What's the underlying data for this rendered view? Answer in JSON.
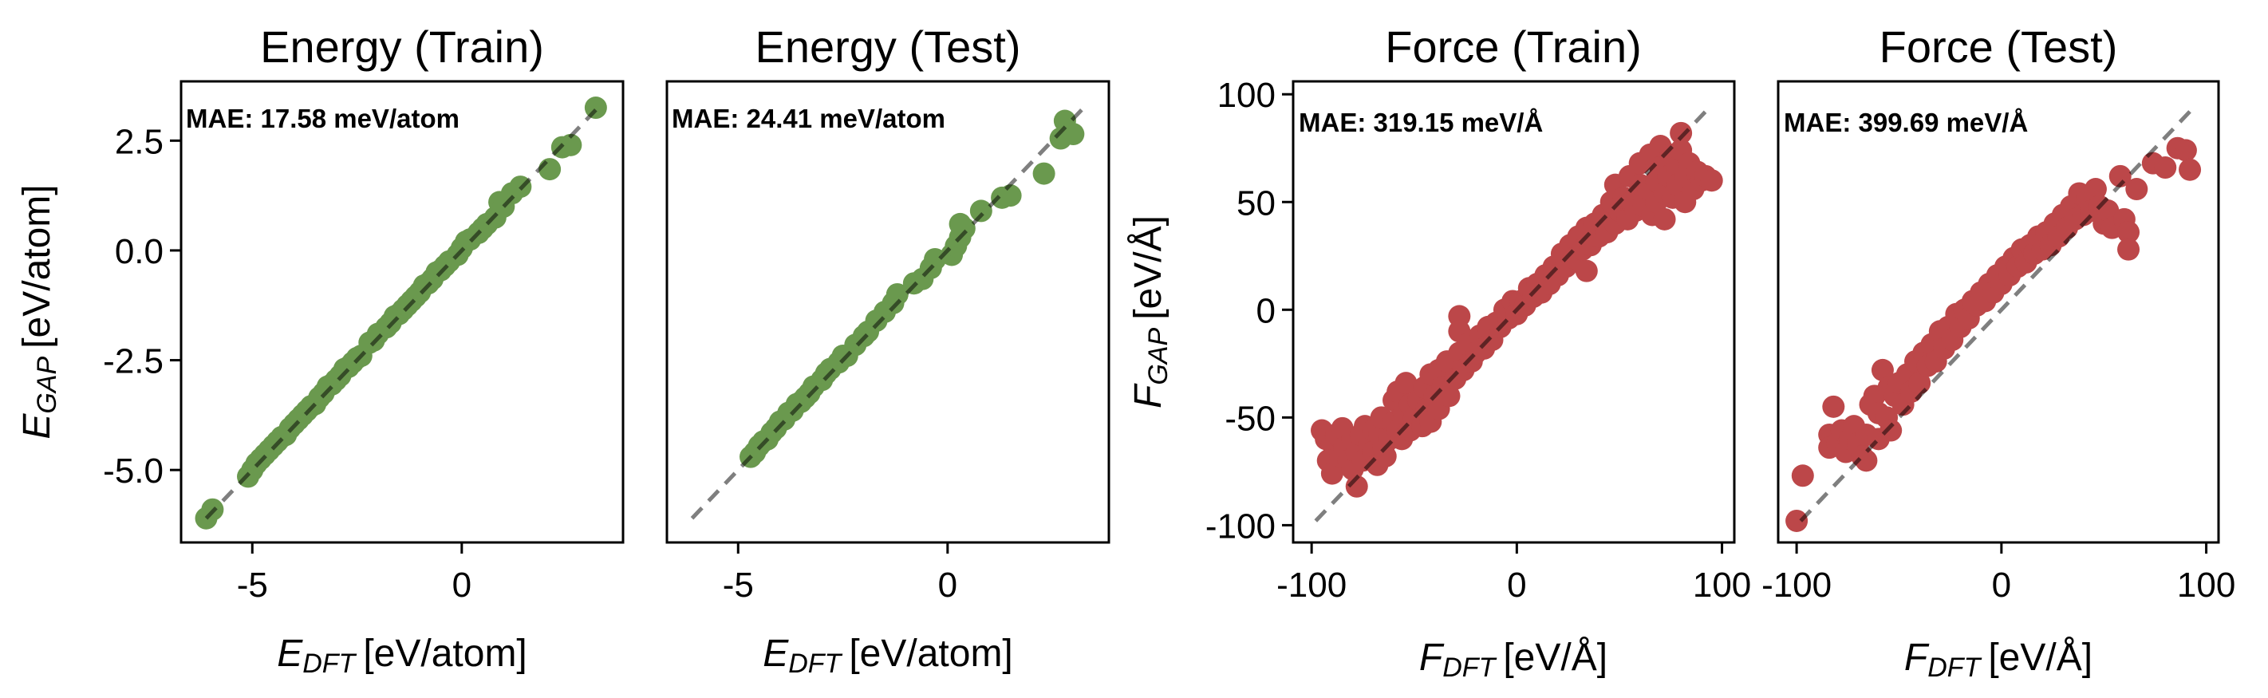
{
  "chart_data": [
    {
      "type": "scatter",
      "title": "Energy (Train)",
      "annotation": "MAE: 17.58 meV/atom",
      "xlabel": {
        "symbol": "E",
        "subscript": "DFT",
        "unit": "[eV/atom]"
      },
      "ylabel": {
        "symbol": "E",
        "subscript": "GAP",
        "unit": "[eV/atom]"
      },
      "xlim": [
        -6.7,
        3.85
      ],
      "ylim": [
        -6.65,
        3.85
      ],
      "xticks": [
        {
          "value": -5,
          "label": "-5"
        },
        {
          "value": 0,
          "label": "0"
        }
      ],
      "yticks": [
        {
          "value": 2.5,
          "label": "2.5"
        },
        {
          "value": 0,
          "label": "0.0"
        },
        {
          "value": -2.5,
          "label": "-2.5"
        },
        {
          "value": -5,
          "label": "-5.0"
        }
      ],
      "grid": false,
      "color": "#6a994e",
      "reference_line": [
        -6.1,
        3.2
      ],
      "points": [
        [
          -6.1,
          -6.1
        ],
        [
          -5.95,
          -5.9
        ],
        [
          -5.1,
          -5.15
        ],
        [
          -5.0,
          -5.0
        ],
        [
          -4.9,
          -4.85
        ],
        [
          -4.8,
          -4.75
        ],
        [
          -4.7,
          -4.65
        ],
        [
          -4.6,
          -4.55
        ],
        [
          -4.5,
          -4.45
        ],
        [
          -4.4,
          -4.35
        ],
        [
          -4.3,
          -4.25
        ],
        [
          -4.2,
          -4.2
        ],
        [
          -4.1,
          -4.05
        ],
        [
          -4.0,
          -3.95
        ],
        [
          -3.9,
          -3.85
        ],
        [
          -3.8,
          -3.75
        ],
        [
          -3.7,
          -3.65
        ],
        [
          -3.6,
          -3.55
        ],
        [
          -3.5,
          -3.5
        ],
        [
          -3.4,
          -3.35
        ],
        [
          -3.3,
          -3.25
        ],
        [
          -3.2,
          -3.1
        ],
        [
          -3.1,
          -3.05
        ],
        [
          -3.0,
          -2.95
        ],
        [
          -2.9,
          -2.85
        ],
        [
          -2.8,
          -2.7
        ],
        [
          -2.7,
          -2.65
        ],
        [
          -2.6,
          -2.55
        ],
        [
          -2.5,
          -2.45
        ],
        [
          -2.4,
          -2.4
        ],
        [
          -2.2,
          -2.1
        ],
        [
          -2.1,
          -2.05
        ],
        [
          -2.0,
          -1.9
        ],
        [
          -1.8,
          -1.75
        ],
        [
          -1.7,
          -1.65
        ],
        [
          -1.6,
          -1.5
        ],
        [
          -1.5,
          -1.45
        ],
        [
          -1.4,
          -1.35
        ],
        [
          -1.3,
          -1.25
        ],
        [
          -1.2,
          -1.15
        ],
        [
          -1.1,
          -1.05
        ],
        [
          -1.0,
          -0.95
        ],
        [
          -0.9,
          -0.8
        ],
        [
          -0.8,
          -0.75
        ],
        [
          -0.7,
          -0.65
        ],
        [
          -0.6,
          -0.5
        ],
        [
          -0.5,
          -0.45
        ],
        [
          -0.4,
          -0.35
        ],
        [
          -0.3,
          -0.25
        ],
        [
          -0.1,
          -0.1
        ],
        [
          0.0,
          0.05
        ],
        [
          0.1,
          0.2
        ],
        [
          0.2,
          0.25
        ],
        [
          0.4,
          0.4
        ],
        [
          0.5,
          0.5
        ],
        [
          0.6,
          0.6
        ],
        [
          0.8,
          0.75
        ],
        [
          0.9,
          1.1
        ],
        [
          1.0,
          1.0
        ],
        [
          1.2,
          1.3
        ],
        [
          1.4,
          1.45
        ],
        [
          2.1,
          1.85
        ],
        [
          2.4,
          2.35
        ],
        [
          2.6,
          2.4
        ],
        [
          3.2,
          3.25
        ]
      ]
    },
    {
      "type": "scatter",
      "title": "Energy (Test)",
      "annotation": "MAE: 24.41 meV/atom",
      "xlabel": {
        "symbol": "E",
        "subscript": "DFT",
        "unit": "[eV/atom]"
      },
      "xlim": [
        -6.7,
        3.85
      ],
      "ylim": [
        -6.65,
        3.85
      ],
      "xticks": [
        {
          "value": -5,
          "label": "-5"
        },
        {
          "value": 0,
          "label": "0"
        }
      ],
      "yticks": [],
      "grid": false,
      "color": "#6a994e",
      "reference_line": [
        -6.1,
        3.2
      ],
      "points": [
        [
          -4.7,
          -4.7
        ],
        [
          -4.6,
          -4.6
        ],
        [
          -4.5,
          -4.45
        ],
        [
          -4.4,
          -4.35
        ],
        [
          -4.3,
          -4.3
        ],
        [
          -4.2,
          -4.15
        ],
        [
          -4.1,
          -4.05
        ],
        [
          -4.0,
          -3.9
        ],
        [
          -3.9,
          -3.85
        ],
        [
          -3.8,
          -3.7
        ],
        [
          -3.7,
          -3.65
        ],
        [
          -3.6,
          -3.5
        ],
        [
          -3.5,
          -3.45
        ],
        [
          -3.4,
          -3.35
        ],
        [
          -3.3,
          -3.25
        ],
        [
          -3.2,
          -3.1
        ],
        [
          -3.0,
          -2.95
        ],
        [
          -2.9,
          -2.8
        ],
        [
          -2.8,
          -2.7
        ],
        [
          -2.6,
          -2.55
        ],
        [
          -2.5,
          -2.4
        ],
        [
          -2.4,
          -2.4
        ],
        [
          -2.2,
          -2.15
        ],
        [
          -2.0,
          -1.95
        ],
        [
          -1.9,
          -1.85
        ],
        [
          -1.7,
          -1.6
        ],
        [
          -1.5,
          -1.4
        ],
        [
          -1.3,
          -1.2
        ],
        [
          -1.2,
          -1.0
        ],
        [
          -0.8,
          -0.75
        ],
        [
          -0.6,
          -0.65
        ],
        [
          -0.4,
          -0.4
        ],
        [
          -0.3,
          -0.2
        ],
        [
          0.1,
          -0.1
        ],
        [
          0.2,
          0.1
        ],
        [
          0.3,
          0.3
        ],
        [
          0.4,
          0.5
        ],
        [
          0.3,
          0.6
        ],
        [
          0.8,
          0.9
        ],
        [
          1.3,
          1.2
        ],
        [
          1.5,
          1.25
        ],
        [
          2.3,
          1.75
        ],
        [
          2.7,
          2.55
        ],
        [
          2.8,
          2.95
        ],
        [
          3.0,
          2.65
        ]
      ]
    },
    {
      "type": "scatter",
      "title": "Force (Train)",
      "annotation": "MAE: 319.15 meV/Å",
      "xlabel": {
        "symbol": "F",
        "subscript": "DFT",
        "unit": "[eV/Å]"
      },
      "ylabel": {
        "symbol": "F",
        "subscript": "GAP",
        "unit": "[eV/Å]"
      },
      "xlim": [
        -109,
        106
      ],
      "ylim": [
        -108,
        106
      ],
      "xticks": [
        {
          "value": -100,
          "label": "-100"
        },
        {
          "value": 0,
          "label": "0"
        },
        {
          "value": 100,
          "label": "100"
        }
      ],
      "yticks": [
        {
          "value": 100,
          "label": "100"
        },
        {
          "value": 50,
          "label": "50"
        },
        {
          "value": 0,
          "label": "0"
        },
        {
          "value": -50,
          "label": "-50"
        },
        {
          "value": -100,
          "label": "-100"
        }
      ],
      "grid": false,
      "color": "#bc4749",
      "reference_line": [
        -98,
        95
      ],
      "points": [
        [
          -95,
          -56
        ],
        [
          -93,
          -60
        ],
        [
          -90,
          -62
        ],
        [
          -88,
          -58
        ],
        [
          -92,
          -70
        ],
        [
          -90,
          -76
        ],
        [
          -86,
          -68
        ],
        [
          -85,
          -55
        ],
        [
          -84,
          -64
        ],
        [
          -82,
          -70
        ],
        [
          -80,
          -60
        ],
        [
          -80,
          -74
        ],
        [
          -78,
          -82
        ],
        [
          -78,
          -66
        ],
        [
          -76,
          -58
        ],
        [
          -75,
          -70
        ],
        [
          -74,
          -54
        ],
        [
          -72,
          -62
        ],
        [
          -70,
          -66
        ],
        [
          -70,
          -56
        ],
        [
          -68,
          -72
        ],
        [
          -67,
          -58
        ],
        [
          -66,
          -50
        ],
        [
          -65,
          -64
        ],
        [
          -64,
          -68
        ],
        [
          -62,
          -60
        ],
        [
          -60,
          -52
        ],
        [
          -60,
          -42
        ],
        [
          -58,
          -56
        ],
        [
          -58,
          -38
        ],
        [
          -56,
          -60
        ],
        [
          -55,
          -48
        ],
        [
          -54,
          -34
        ],
        [
          -52,
          -44
        ],
        [
          -52,
          -56
        ],
        [
          -50,
          -50
        ],
        [
          -48,
          -42
        ],
        [
          -46,
          -54
        ],
        [
          -45,
          -36
        ],
        [
          -44,
          -46
        ],
        [
          -42,
          -30
        ],
        [
          -42,
          -52
        ],
        [
          -40,
          -40
        ],
        [
          -38,
          -28
        ],
        [
          -38,
          -46
        ],
        [
          -36,
          -36
        ],
        [
          -34,
          -24
        ],
        [
          -33,
          -40
        ],
        [
          -30,
          -32
        ],
        [
          -28,
          -3
        ],
        [
          -28,
          -10
        ],
        [
          -28,
          -20
        ],
        [
          -26,
          -28
        ],
        [
          -24,
          -16
        ],
        [
          -22,
          -24
        ],
        [
          -20,
          -20
        ],
        [
          -18,
          -12
        ],
        [
          -16,
          -18
        ],
        [
          -14,
          -8
        ],
        [
          -12,
          -14
        ],
        [
          -10,
          -6
        ],
        [
          -8,
          -8
        ],
        [
          -6,
          0
        ],
        [
          -4,
          -4
        ],
        [
          -2,
          4
        ],
        [
          0,
          -2
        ],
        [
          2,
          4
        ],
        [
          4,
          2
        ],
        [
          6,
          10
        ],
        [
          8,
          6
        ],
        [
          10,
          12
        ],
        [
          12,
          8
        ],
        [
          14,
          16
        ],
        [
          16,
          12
        ],
        [
          18,
          20
        ],
        [
          20,
          16
        ],
        [
          22,
          26
        ],
        [
          24,
          20
        ],
        [
          26,
          30
        ],
        [
          28,
          24
        ],
        [
          30,
          34
        ],
        [
          32,
          28
        ],
        [
          34,
          38
        ],
        [
          34,
          18
        ],
        [
          36,
          30
        ],
        [
          38,
          40
        ],
        [
          40,
          34
        ],
        [
          42,
          44
        ],
        [
          44,
          36
        ],
        [
          46,
          50
        ],
        [
          48,
          40
        ],
        [
          48,
          58
        ],
        [
          50,
          46
        ],
        [
          52,
          52
        ],
        [
          54,
          42
        ],
        [
          55,
          62
        ],
        [
          56,
          50
        ],
        [
          58,
          46
        ],
        [
          60,
          58
        ],
        [
          60,
          68
        ],
        [
          62,
          48
        ],
        [
          64,
          56
        ],
        [
          65,
          72
        ],
        [
          66,
          44
        ],
        [
          68,
          60
        ],
        [
          68,
          50
        ],
        [
          70,
          66
        ],
        [
          70,
          76
        ],
        [
          72,
          54
        ],
        [
          72,
          42
        ],
        [
          74,
          62
        ],
        [
          75,
          72
        ],
        [
          76,
          52
        ],
        [
          78,
          66
        ],
        [
          78,
          58
        ],
        [
          80,
          82
        ],
        [
          80,
          74
        ],
        [
          82,
          62
        ],
        [
          82,
          50
        ],
        [
          84,
          68
        ],
        [
          86,
          56
        ],
        [
          88,
          64
        ],
        [
          90,
          60
        ],
        [
          92,
          62
        ],
        [
          95,
          60
        ]
      ]
    },
    {
      "type": "scatter",
      "title": "Force (Test)",
      "annotation": "MAE: 399.69 meV/Å",
      "xlabel": {
        "symbol": "F",
        "subscript": "DFT",
        "unit": "[eV/Å]"
      },
      "xlim": [
        -109,
        106
      ],
      "ylim": [
        -108,
        106
      ],
      "xticks": [
        {
          "value": -100,
          "label": "-100"
        },
        {
          "value": 0,
          "label": "0"
        },
        {
          "value": 100,
          "label": "100"
        }
      ],
      "yticks": [],
      "grid": false,
      "color": "#bc4749",
      "reference_line": [
        -98,
        95
      ],
      "points": [
        [
          -100,
          -98
        ],
        [
          -97,
          -77
        ],
        [
          -82,
          -45
        ],
        [
          -84,
          -58
        ],
        [
          -84,
          -64
        ],
        [
          -80,
          -62
        ],
        [
          -78,
          -56
        ],
        [
          -76,
          -66
        ],
        [
          -74,
          -60
        ],
        [
          -72,
          -54
        ],
        [
          -70,
          -62
        ],
        [
          -68,
          -68
        ],
        [
          -66,
          -70
        ],
        [
          -66,
          -58
        ],
        [
          -64,
          -44
        ],
        [
          -62,
          -40
        ],
        [
          -60,
          -48
        ],
        [
          -60,
          -60
        ],
        [
          -58,
          -28
        ],
        [
          -56,
          -50
        ],
        [
          -55,
          -36
        ],
        [
          -54,
          -56
        ],
        [
          -52,
          -40
        ],
        [
          -50,
          -34
        ],
        [
          -48,
          -44
        ],
        [
          -46,
          -30
        ],
        [
          -44,
          -38
        ],
        [
          -42,
          -24
        ],
        [
          -40,
          -34
        ],
        [
          -38,
          -20
        ],
        [
          -36,
          -26
        ],
        [
          -34,
          -16
        ],
        [
          -32,
          -24
        ],
        [
          -30,
          -10
        ],
        [
          -28,
          -18
        ],
        [
          -26,
          -8
        ],
        [
          -24,
          -14
        ],
        [
          -22,
          -2
        ],
        [
          -20,
          -8
        ],
        [
          -18,
          0
        ],
        [
          -16,
          -4
        ],
        [
          -14,
          4
        ],
        [
          -12,
          2
        ],
        [
          -10,
          8
        ],
        [
          -8,
          4
        ],
        [
          -6,
          12
        ],
        [
          -4,
          8
        ],
        [
          -2,
          16
        ],
        [
          0,
          12
        ],
        [
          2,
          20
        ],
        [
          4,
          16
        ],
        [
          6,
          24
        ],
        [
          8,
          20
        ],
        [
          10,
          28
        ],
        [
          12,
          22
        ],
        [
          14,
          30
        ],
        [
          16,
          26
        ],
        [
          18,
          34
        ],
        [
          20,
          28
        ],
        [
          22,
          36
        ],
        [
          24,
          30
        ],
        [
          26,
          40
        ],
        [
          28,
          34
        ],
        [
          30,
          44
        ],
        [
          32,
          38
        ],
        [
          34,
          48
        ],
        [
          36,
          42
        ],
        [
          38,
          54
        ],
        [
          40,
          44
        ],
        [
          42,
          52
        ],
        [
          44,
          46
        ],
        [
          46,
          56
        ],
        [
          48,
          48
        ],
        [
          50,
          40
        ],
        [
          52,
          46
        ],
        [
          54,
          38
        ],
        [
          58,
          62
        ],
        [
          60,
          42
        ],
        [
          62,
          36
        ],
        [
          62,
          28
        ],
        [
          66,
          56
        ],
        [
          74,
          68
        ],
        [
          80,
          66
        ],
        [
          86,
          75
        ],
        [
          90,
          74
        ],
        [
          92,
          65
        ]
      ]
    }
  ]
}
